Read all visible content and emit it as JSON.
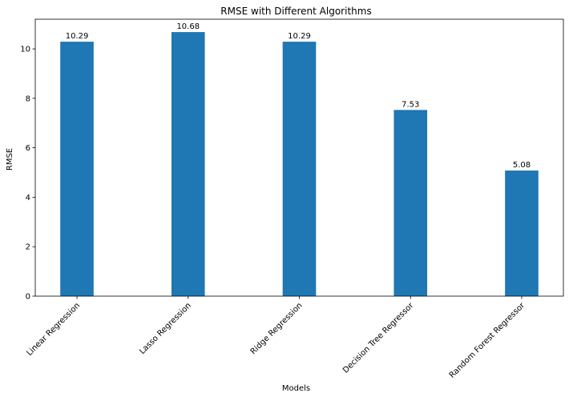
{
  "chart_data": {
    "type": "bar",
    "title": "RMSE with Different Algorithms",
    "xlabel": "Models",
    "ylabel": "RMSE",
    "categories": [
      "Linear Regression",
      "Lasso Regression",
      "Ridge Regression",
      "Decision Tree Regressor",
      "Random Forest Regressor"
    ],
    "values": [
      10.29,
      10.68,
      10.29,
      7.53,
      5.08
    ],
    "data_labels": [
      "10.29",
      "10.68",
      "10.29",
      "7.53",
      "5.08"
    ],
    "yticks": [
      0,
      2,
      4,
      6,
      8,
      10
    ],
    "ylim": [
      0,
      11.2
    ],
    "grid": false,
    "legend": "none",
    "bar_color": "#1f77b4"
  }
}
